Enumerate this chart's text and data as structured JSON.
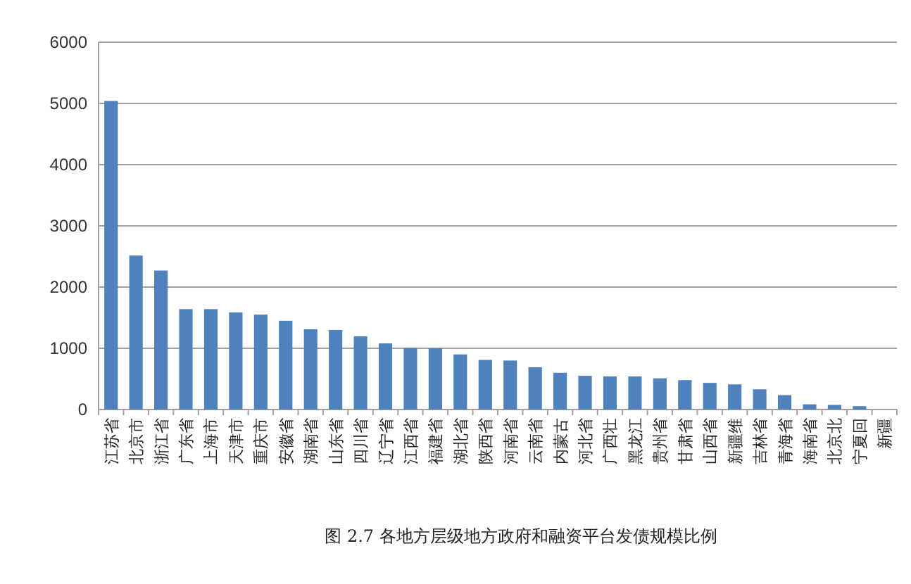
{
  "chart_data": {
    "type": "bar",
    "title": "图 2.7   各地方层级地方政府和融资平台发债规模比例",
    "categories": [
      "江苏省",
      "北京市",
      "浙江省",
      "广东省",
      "上海市",
      "天津市",
      "重庆市",
      "安徽省",
      "湖南省",
      "山东省",
      "四川省",
      "辽宁省",
      "江西省",
      "福建省",
      "湖北省",
      "陕西省",
      "河南省",
      "云南省",
      "内蒙古",
      "河北省",
      "广西壮",
      "黑龙江",
      "贵州省",
      "甘肃省",
      "山西省",
      "新疆维",
      "吉林省",
      "青海省",
      "海南省",
      "北京北",
      "宁夏回",
      "新疆"
    ],
    "values": [
      5040,
      2515,
      2270,
      1640,
      1640,
      1585,
      1550,
      1450,
      1310,
      1300,
      1195,
      1080,
      1005,
      1000,
      900,
      810,
      800,
      690,
      600,
      550,
      540,
      540,
      510,
      480,
      435,
      410,
      330,
      235,
      85,
      75,
      55,
      0
    ],
    "color": "#4f81bd",
    "ylim": [
      0,
      6000
    ],
    "yticks": [
      0,
      1000,
      2000,
      3000,
      4000,
      5000,
      6000
    ],
    "grid": "y"
  }
}
